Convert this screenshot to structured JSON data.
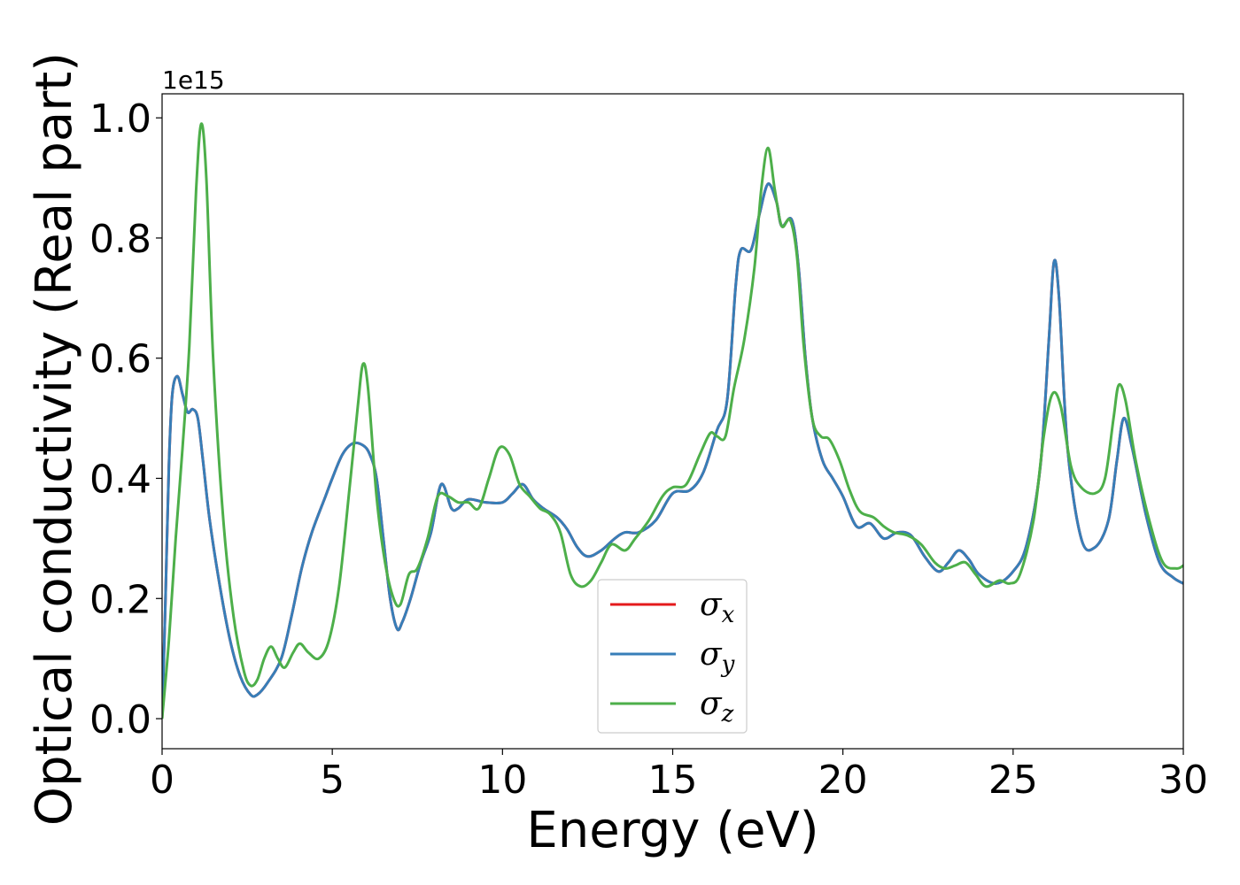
{
  "chart_data": {
    "type": "line",
    "xlabel": "Energy (eV)",
    "ylabel": "Optical conductivity (Real part)",
    "y_offset_label": "1e15",
    "xlim": [
      0,
      30
    ],
    "ylim": [
      -0.05,
      1.04
    ],
    "xticks": [
      0,
      5,
      10,
      15,
      20,
      25,
      30
    ],
    "xtick_labels": [
      "0",
      "5",
      "10",
      "15",
      "20",
      "25",
      "30"
    ],
    "yticks": [
      0.0,
      0.2,
      0.4,
      0.6,
      0.8,
      1.0
    ],
    "ytick_labels": [
      "0.0",
      "0.2",
      "0.4",
      "0.6",
      "0.8",
      "1.0"
    ],
    "grid": false,
    "legend_position": "lower-center",
    "series": [
      {
        "name": "σx",
        "symbol": "σ",
        "subscript": "x",
        "color": "#e41a1c",
        "points": [
          [
            0,
            0
          ],
          [
            0.1,
            0.2
          ],
          [
            0.2,
            0.42
          ],
          [
            0.3,
            0.54
          ],
          [
            0.45,
            0.57
          ],
          [
            0.6,
            0.54
          ],
          [
            0.75,
            0.51
          ],
          [
            0.9,
            0.515
          ],
          [
            1.05,
            0.5
          ],
          [
            1.2,
            0.43
          ],
          [
            1.4,
            0.33
          ],
          [
            1.7,
            0.22
          ],
          [
            2.0,
            0.13
          ],
          [
            2.3,
            0.07
          ],
          [
            2.6,
            0.04
          ],
          [
            2.8,
            0.04
          ],
          [
            3.1,
            0.06
          ],
          [
            3.5,
            0.1
          ],
          [
            3.8,
            0.17
          ],
          [
            4.1,
            0.25
          ],
          [
            4.4,
            0.31
          ],
          [
            4.8,
            0.37
          ],
          [
            5.0,
            0.4
          ],
          [
            5.3,
            0.44
          ],
          [
            5.6,
            0.458
          ],
          [
            5.9,
            0.455
          ],
          [
            6.1,
            0.44
          ],
          [
            6.3,
            0.4
          ],
          [
            6.5,
            0.3
          ],
          [
            6.7,
            0.2
          ],
          [
            6.9,
            0.15
          ],
          [
            7.05,
            0.16
          ],
          [
            7.3,
            0.2
          ],
          [
            7.6,
            0.26
          ],
          [
            7.9,
            0.31
          ],
          [
            8.2,
            0.39
          ],
          [
            8.5,
            0.35
          ],
          [
            8.7,
            0.35
          ],
          [
            9.0,
            0.365
          ],
          [
            9.5,
            0.36
          ],
          [
            10.0,
            0.36
          ],
          [
            10.3,
            0.375
          ],
          [
            10.6,
            0.39
          ],
          [
            10.9,
            0.365
          ],
          [
            11.2,
            0.35
          ],
          [
            11.6,
            0.335
          ],
          [
            11.9,
            0.315
          ],
          [
            12.2,
            0.285
          ],
          [
            12.5,
            0.27
          ],
          [
            12.9,
            0.28
          ],
          [
            13.3,
            0.3
          ],
          [
            13.6,
            0.31
          ],
          [
            14.0,
            0.31
          ],
          [
            14.5,
            0.33
          ],
          [
            15.0,
            0.375
          ],
          [
            15.5,
            0.38
          ],
          [
            15.9,
            0.41
          ],
          [
            16.3,
            0.48
          ],
          [
            16.6,
            0.53
          ],
          [
            16.85,
            0.72
          ],
          [
            17.0,
            0.78
          ],
          [
            17.3,
            0.78
          ],
          [
            17.55,
            0.84
          ],
          [
            17.8,
            0.89
          ],
          [
            18.05,
            0.86
          ],
          [
            18.2,
            0.82
          ],
          [
            18.5,
            0.83
          ],
          [
            18.7,
            0.75
          ],
          [
            18.9,
            0.6
          ],
          [
            19.1,
            0.5
          ],
          [
            19.4,
            0.43
          ],
          [
            19.7,
            0.4
          ],
          [
            20.0,
            0.37
          ],
          [
            20.4,
            0.32
          ],
          [
            20.8,
            0.325
          ],
          [
            21.2,
            0.3
          ],
          [
            21.6,
            0.31
          ],
          [
            22.0,
            0.305
          ],
          [
            22.4,
            0.27
          ],
          [
            22.8,
            0.245
          ],
          [
            23.1,
            0.26
          ],
          [
            23.4,
            0.28
          ],
          [
            23.7,
            0.265
          ],
          [
            24.0,
            0.24
          ],
          [
            24.5,
            0.225
          ],
          [
            25.0,
            0.245
          ],
          [
            25.4,
            0.29
          ],
          [
            25.8,
            0.42
          ],
          [
            26.05,
            0.63
          ],
          [
            26.2,
            0.76
          ],
          [
            26.35,
            0.7
          ],
          [
            26.6,
            0.45
          ],
          [
            27.0,
            0.3
          ],
          [
            27.4,
            0.285
          ],
          [
            27.8,
            0.33
          ],
          [
            28.05,
            0.43
          ],
          [
            28.25,
            0.5
          ],
          [
            28.5,
            0.45
          ],
          [
            28.9,
            0.34
          ],
          [
            29.3,
            0.26
          ],
          [
            29.7,
            0.235
          ],
          [
            30.0,
            0.225
          ]
        ]
      },
      {
        "name": "σy",
        "symbol": "σ",
        "subscript": "y",
        "color": "#377eb8",
        "points": [
          [
            0,
            0
          ],
          [
            0.1,
            0.2
          ],
          [
            0.2,
            0.42
          ],
          [
            0.3,
            0.54
          ],
          [
            0.45,
            0.57
          ],
          [
            0.6,
            0.54
          ],
          [
            0.75,
            0.51
          ],
          [
            0.9,
            0.515
          ],
          [
            1.05,
            0.5
          ],
          [
            1.2,
            0.43
          ],
          [
            1.4,
            0.33
          ],
          [
            1.7,
            0.22
          ],
          [
            2.0,
            0.13
          ],
          [
            2.3,
            0.07
          ],
          [
            2.6,
            0.04
          ],
          [
            2.8,
            0.04
          ],
          [
            3.1,
            0.06
          ],
          [
            3.5,
            0.1
          ],
          [
            3.8,
            0.17
          ],
          [
            4.1,
            0.25
          ],
          [
            4.4,
            0.31
          ],
          [
            4.8,
            0.37
          ],
          [
            5.0,
            0.4
          ],
          [
            5.3,
            0.44
          ],
          [
            5.6,
            0.458
          ],
          [
            5.9,
            0.455
          ],
          [
            6.1,
            0.44
          ],
          [
            6.3,
            0.4
          ],
          [
            6.5,
            0.3
          ],
          [
            6.7,
            0.2
          ],
          [
            6.9,
            0.15
          ],
          [
            7.05,
            0.16
          ],
          [
            7.3,
            0.2
          ],
          [
            7.6,
            0.26
          ],
          [
            7.9,
            0.31
          ],
          [
            8.2,
            0.39
          ],
          [
            8.5,
            0.35
          ],
          [
            8.7,
            0.35
          ],
          [
            9.0,
            0.365
          ],
          [
            9.5,
            0.36
          ],
          [
            10.0,
            0.36
          ],
          [
            10.3,
            0.375
          ],
          [
            10.6,
            0.39
          ],
          [
            10.9,
            0.365
          ],
          [
            11.2,
            0.35
          ],
          [
            11.6,
            0.335
          ],
          [
            11.9,
            0.315
          ],
          [
            12.2,
            0.285
          ],
          [
            12.5,
            0.27
          ],
          [
            12.9,
            0.28
          ],
          [
            13.3,
            0.3
          ],
          [
            13.6,
            0.31
          ],
          [
            14.0,
            0.31
          ],
          [
            14.5,
            0.33
          ],
          [
            15.0,
            0.375
          ],
          [
            15.5,
            0.38
          ],
          [
            15.9,
            0.41
          ],
          [
            16.3,
            0.48
          ],
          [
            16.6,
            0.53
          ],
          [
            16.85,
            0.72
          ],
          [
            17.0,
            0.78
          ],
          [
            17.3,
            0.78
          ],
          [
            17.55,
            0.84
          ],
          [
            17.8,
            0.89
          ],
          [
            18.05,
            0.86
          ],
          [
            18.2,
            0.82
          ],
          [
            18.5,
            0.83
          ],
          [
            18.7,
            0.75
          ],
          [
            18.9,
            0.6
          ],
          [
            19.1,
            0.5
          ],
          [
            19.4,
            0.43
          ],
          [
            19.7,
            0.4
          ],
          [
            20.0,
            0.37
          ],
          [
            20.4,
            0.32
          ],
          [
            20.8,
            0.325
          ],
          [
            21.2,
            0.3
          ],
          [
            21.6,
            0.31
          ],
          [
            22.0,
            0.305
          ],
          [
            22.4,
            0.27
          ],
          [
            22.8,
            0.245
          ],
          [
            23.1,
            0.26
          ],
          [
            23.4,
            0.28
          ],
          [
            23.7,
            0.265
          ],
          [
            24.0,
            0.24
          ],
          [
            24.5,
            0.225
          ],
          [
            25.0,
            0.245
          ],
          [
            25.4,
            0.29
          ],
          [
            25.8,
            0.42
          ],
          [
            26.05,
            0.63
          ],
          [
            26.2,
            0.76
          ],
          [
            26.35,
            0.7
          ],
          [
            26.6,
            0.45
          ],
          [
            27.0,
            0.3
          ],
          [
            27.4,
            0.285
          ],
          [
            27.8,
            0.33
          ],
          [
            28.05,
            0.43
          ],
          [
            28.25,
            0.5
          ],
          [
            28.5,
            0.45
          ],
          [
            28.9,
            0.34
          ],
          [
            29.3,
            0.26
          ],
          [
            29.7,
            0.235
          ],
          [
            30.0,
            0.225
          ]
        ]
      },
      {
        "name": "σz",
        "symbol": "σ",
        "subscript": "z",
        "color": "#4daf4a",
        "points": [
          [
            0,
            0
          ],
          [
            0.2,
            0.13
          ],
          [
            0.4,
            0.3
          ],
          [
            0.6,
            0.45
          ],
          [
            0.8,
            0.62
          ],
          [
            1.0,
            0.88
          ],
          [
            1.15,
            0.99
          ],
          [
            1.3,
            0.9
          ],
          [
            1.5,
            0.6
          ],
          [
            1.8,
            0.33
          ],
          [
            2.1,
            0.17
          ],
          [
            2.4,
            0.08
          ],
          [
            2.6,
            0.055
          ],
          [
            2.8,
            0.065
          ],
          [
            3.0,
            0.1
          ],
          [
            3.2,
            0.12
          ],
          [
            3.4,
            0.1
          ],
          [
            3.6,
            0.085
          ],
          [
            3.85,
            0.11
          ],
          [
            4.05,
            0.125
          ],
          [
            4.3,
            0.11
          ],
          [
            4.6,
            0.1
          ],
          [
            4.9,
            0.13
          ],
          [
            5.2,
            0.22
          ],
          [
            5.5,
            0.38
          ],
          [
            5.75,
            0.52
          ],
          [
            5.9,
            0.59
          ],
          [
            6.05,
            0.55
          ],
          [
            6.3,
            0.37
          ],
          [
            6.55,
            0.26
          ],
          [
            6.8,
            0.2
          ],
          [
            7.0,
            0.19
          ],
          [
            7.25,
            0.24
          ],
          [
            7.5,
            0.25
          ],
          [
            7.8,
            0.3
          ],
          [
            8.1,
            0.37
          ],
          [
            8.4,
            0.37
          ],
          [
            8.7,
            0.36
          ],
          [
            9.0,
            0.36
          ],
          [
            9.3,
            0.35
          ],
          [
            9.6,
            0.4
          ],
          [
            9.9,
            0.45
          ],
          [
            10.2,
            0.44
          ],
          [
            10.5,
            0.39
          ],
          [
            10.8,
            0.37
          ],
          [
            11.1,
            0.35
          ],
          [
            11.4,
            0.34
          ],
          [
            11.7,
            0.31
          ],
          [
            12.0,
            0.24
          ],
          [
            12.3,
            0.22
          ],
          [
            12.6,
            0.23
          ],
          [
            12.9,
            0.26
          ],
          [
            13.2,
            0.29
          ],
          [
            13.6,
            0.28
          ],
          [
            13.9,
            0.3
          ],
          [
            14.3,
            0.33
          ],
          [
            14.7,
            0.37
          ],
          [
            15.0,
            0.385
          ],
          [
            15.4,
            0.39
          ],
          [
            15.8,
            0.44
          ],
          [
            16.1,
            0.475
          ],
          [
            16.3,
            0.47
          ],
          [
            16.55,
            0.47
          ],
          [
            16.8,
            0.55
          ],
          [
            17.1,
            0.63
          ],
          [
            17.4,
            0.75
          ],
          [
            17.6,
            0.88
          ],
          [
            17.8,
            0.95
          ],
          [
            18.0,
            0.88
          ],
          [
            18.2,
            0.82
          ],
          [
            18.45,
            0.83
          ],
          [
            18.65,
            0.77
          ],
          [
            18.85,
            0.62
          ],
          [
            19.1,
            0.5
          ],
          [
            19.35,
            0.47
          ],
          [
            19.6,
            0.465
          ],
          [
            19.9,
            0.43
          ],
          [
            20.2,
            0.38
          ],
          [
            20.5,
            0.345
          ],
          [
            20.9,
            0.335
          ],
          [
            21.2,
            0.32
          ],
          [
            21.5,
            0.31
          ],
          [
            21.9,
            0.305
          ],
          [
            22.3,
            0.29
          ],
          [
            22.7,
            0.26
          ],
          [
            23.0,
            0.25
          ],
          [
            23.3,
            0.255
          ],
          [
            23.6,
            0.26
          ],
          [
            23.9,
            0.24
          ],
          [
            24.2,
            0.22
          ],
          [
            24.6,
            0.23
          ],
          [
            24.9,
            0.225
          ],
          [
            25.2,
            0.24
          ],
          [
            25.6,
            0.33
          ],
          [
            25.9,
            0.47
          ],
          [
            26.15,
            0.54
          ],
          [
            26.4,
            0.52
          ],
          [
            26.7,
            0.42
          ],
          [
            27.0,
            0.385
          ],
          [
            27.4,
            0.375
          ],
          [
            27.7,
            0.4
          ],
          [
            27.95,
            0.5
          ],
          [
            28.1,
            0.555
          ],
          [
            28.3,
            0.53
          ],
          [
            28.6,
            0.43
          ],
          [
            29.0,
            0.33
          ],
          [
            29.4,
            0.26
          ],
          [
            29.8,
            0.25
          ],
          [
            30.0,
            0.255
          ]
        ]
      }
    ]
  }
}
